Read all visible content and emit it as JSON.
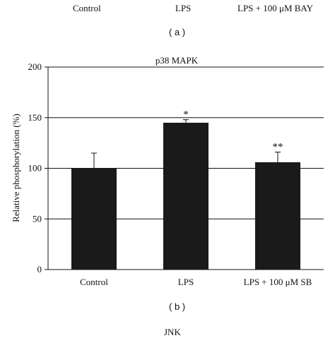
{
  "top_fragment": {
    "categories": [
      "Control",
      "LPS",
      "LPS + 100 μM BAY"
    ],
    "panel_label": "( a )"
  },
  "chart_data": {
    "type": "bar",
    "title": "p38 MAPK",
    "ylabel": "Relative phosphorylation (%)",
    "xlabel": "",
    "ylim": [
      0,
      200
    ],
    "yticks": [
      0,
      50,
      100,
      150,
      200
    ],
    "grid": true,
    "categories": [
      "Control",
      "LPS",
      "LPS + 100 μM SB"
    ],
    "values": [
      100,
      145,
      106
    ],
    "errors": [
      15,
      3,
      10
    ],
    "annotations": [
      "",
      "*",
      "**"
    ],
    "bar_color": "#1a1a1a"
  },
  "bottom_fragment": {
    "panel_label": "( b )",
    "next_title": "JNK"
  }
}
